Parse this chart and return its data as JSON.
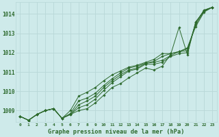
{
  "title": "Graphe pression niveau de la mer (hPa)",
  "bg_color": "#ceeaea",
  "grid_color": "#b8d8d8",
  "line_color": "#2d6a2d",
  "ylim": [
    1008.4,
    1014.6
  ],
  "yticks": [
    1009,
    1010,
    1011,
    1012,
    1013,
    1014
  ],
  "series": [
    [
      1008.7,
      1008.5,
      1008.8,
      1009.0,
      1009.1,
      1008.6,
      1008.8,
      1009.0,
      1009.1,
      1009.4,
      1009.8,
      1010.2,
      1010.4,
      1010.7,
      1010.95,
      1011.2,
      1011.1,
      1011.3,
      1011.9,
      1013.3,
      1011.9,
      1013.6,
      1014.15,
      1014.35
    ],
    [
      1008.7,
      1008.5,
      1008.8,
      1009.0,
      1009.1,
      1008.6,
      1008.8,
      1009.15,
      1009.3,
      1009.6,
      1010.05,
      1010.45,
      1010.75,
      1011.05,
      1011.15,
      1011.4,
      1011.4,
      1011.5,
      1011.8,
      1011.95,
      1012.0,
      1013.55,
      1014.2,
      1014.35
    ],
    [
      1008.7,
      1008.5,
      1008.8,
      1009.0,
      1009.1,
      1008.6,
      1008.8,
      1009.3,
      1009.5,
      1009.75,
      1010.2,
      1010.55,
      1010.85,
      1011.1,
      1011.2,
      1011.45,
      1011.5,
      1011.6,
      1011.85,
      1012.05,
      1012.1,
      1013.55,
      1014.2,
      1014.35
    ],
    [
      1008.7,
      1008.5,
      1008.8,
      1009.0,
      1009.1,
      1008.6,
      1008.85,
      1009.5,
      1009.65,
      1009.9,
      1010.3,
      1010.65,
      1010.95,
      1011.2,
      1011.3,
      1011.45,
      1011.55,
      1011.8,
      1011.95,
      1012.05,
      1012.2,
      1013.45,
      1014.15,
      1014.35
    ],
    [
      1008.7,
      1008.5,
      1008.8,
      1009.0,
      1009.1,
      1008.6,
      1009.0,
      1009.75,
      1009.95,
      1010.2,
      1010.55,
      1010.85,
      1011.05,
      1011.25,
      1011.35,
      1011.5,
      1011.65,
      1011.95,
      1011.95,
      1012.05,
      1012.25,
      1013.35,
      1014.1,
      1014.35
    ]
  ]
}
